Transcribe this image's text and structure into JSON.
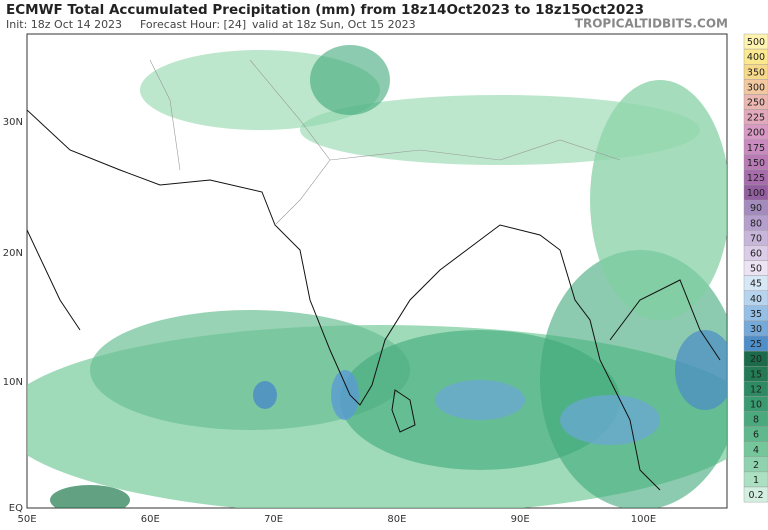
{
  "header": {
    "title": "ECMWF Total Accumulated Precipitation (mm) from 18z14Oct2023 to 18z15Oct2023",
    "init": "Init: 18z Oct 14 2023",
    "forecast_hour": "Forecast Hour: [24]",
    "valid": "valid at 18z Sun, Oct 15 2023",
    "watermark": "TROPICALTIDBITS.COM"
  },
  "map": {
    "lat_labels": [
      "30N",
      "20N",
      "10N",
      "EQ"
    ],
    "lon_labels": [
      "50E",
      "60E",
      "70E",
      "80E",
      "90E",
      "100E"
    ]
  },
  "colorbar": {
    "levels": [
      500,
      400,
      350,
      300,
      250,
      225,
      200,
      175,
      150,
      125,
      100,
      90,
      80,
      70,
      60,
      50,
      45,
      40,
      35,
      30,
      25,
      20,
      15,
      12,
      10,
      8,
      6,
      4,
      2,
      1,
      0.2
    ],
    "colors": [
      "#fff3b0",
      "#fbe88f",
      "#f7d98a",
      "#f2c8a0",
      "#eab8b0",
      "#e2a8bc",
      "#d899c4",
      "#c98bbf",
      "#b87bb5",
      "#a66cab",
      "#935fa0",
      "#a38bbd",
      "#b59fcc",
      "#c8b6da",
      "#dbcde8",
      "#ece4f3",
      "#d6e8f6",
      "#b6d4ee",
      "#95bfe4",
      "#74a9d9",
      "#4f8fc9",
      "#1b6b4a",
      "#237a55",
      "#2d8a62",
      "#3a9a70",
      "#4aaa7e",
      "#5fb98c",
      "#76c69c",
      "#8fd3ae",
      "#abe0c2",
      "#d3efdf"
    ]
  }
}
